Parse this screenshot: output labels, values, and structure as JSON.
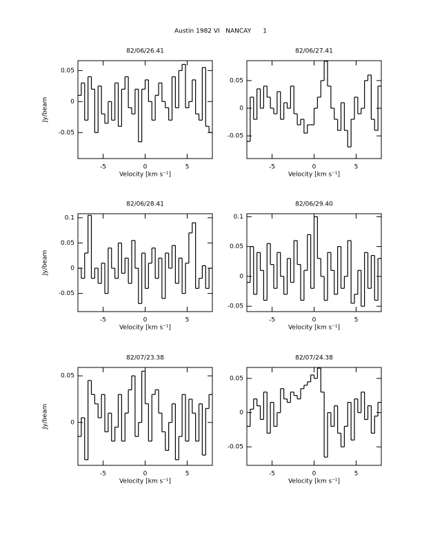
{
  "title": "Austin 1982 VI   NANCAY      1",
  "chart_data": [
    {
      "type": "step",
      "title": "82/06/26.41",
      "xlabel": "Velocity [km s⁻¹]",
      "ylabel": "Jy/beam",
      "x": [
        -7.8,
        -7.4,
        -7.0,
        -6.6,
        -6.2,
        -5.8,
        -5.4,
        -5.0,
        -4.6,
        -4.2,
        -3.8,
        -3.4,
        -3.0,
        -2.6,
        -2.2,
        -1.8,
        -1.4,
        -1.0,
        -0.6,
        -0.2,
        0.2,
        0.6,
        1.0,
        1.4,
        1.8,
        2.2,
        2.6,
        3.0,
        3.4,
        3.8,
        4.2,
        4.6,
        5.0,
        5.4,
        5.8,
        6.2,
        6.6,
        7.0,
        7.4,
        7.8
      ],
      "values": [
        0.01,
        0.03,
        -0.03,
        0.04,
        0.02,
        -0.05,
        0.025,
        -0.02,
        -0.035,
        0.0,
        -0.03,
        0.03,
        -0.04,
        0.02,
        0.04,
        -0.01,
        -0.02,
        0.02,
        -0.065,
        0.02,
        0.035,
        0.0,
        -0.03,
        0.01,
        0.03,
        0.0,
        -0.01,
        -0.03,
        0.04,
        -0.01,
        0.05,
        0.06,
        -0.01,
        0.0,
        0.035,
        -0.02,
        -0.03,
        0.055,
        -0.04,
        -0.05
      ],
      "color": "#000000",
      "xlim": [
        -8,
        8
      ],
      "ylim": [
        -0.092,
        0.066
      ],
      "xticks": [
        -5,
        0,
        5
      ],
      "yticks": [
        -0.05,
        0,
        0.05
      ]
    },
    {
      "type": "step",
      "title": "82/06/27.41",
      "xlabel": "Velocity [km s⁻¹]",
      "x": [
        -7.8,
        -7.4,
        -7.0,
        -6.6,
        -6.2,
        -5.8,
        -5.4,
        -5.0,
        -4.6,
        -4.2,
        -3.8,
        -3.4,
        -3.0,
        -2.6,
        -2.2,
        -1.8,
        -1.4,
        -1.0,
        -0.6,
        -0.2,
        0.2,
        0.6,
        1.0,
        1.4,
        1.8,
        2.2,
        2.6,
        3.0,
        3.4,
        3.8,
        4.2,
        4.6,
        5.0,
        5.4,
        5.8,
        6.2,
        6.6,
        7.0,
        7.4,
        7.8
      ],
      "values": [
        -0.06,
        0.02,
        -0.02,
        0.035,
        0.0,
        0.04,
        0.02,
        0.0,
        -0.01,
        0.03,
        -0.02,
        0.01,
        0.0,
        0.04,
        -0.01,
        -0.03,
        -0.02,
        -0.045,
        -0.03,
        -0.03,
        0.0,
        0.02,
        0.05,
        0.085,
        0.04,
        0.0,
        -0.02,
        -0.04,
        0.01,
        -0.04,
        -0.07,
        -0.02,
        0.02,
        -0.01,
        0.0,
        0.05,
        0.06,
        -0.02,
        -0.04,
        0.04
      ],
      "color": "#000000",
      "xlim": [
        -8,
        8
      ],
      "ylim": [
        -0.091,
        0.086
      ],
      "xticks": [
        -5,
        0,
        5
      ],
      "yticks": [
        -0.05,
        0,
        0.05
      ]
    },
    {
      "type": "step",
      "title": "82/06/28.41",
      "xlabel": "Velocity [km s⁻¹]",
      "ylabel": "Jy/beam",
      "x": [
        -7.8,
        -7.4,
        -7.0,
        -6.6,
        -6.2,
        -5.8,
        -5.4,
        -5.0,
        -4.6,
        -4.2,
        -3.8,
        -3.4,
        -3.0,
        -2.6,
        -2.2,
        -1.8,
        -1.4,
        -1.0,
        -0.6,
        -0.2,
        0.2,
        0.6,
        1.0,
        1.4,
        1.8,
        2.2,
        2.6,
        3.0,
        3.4,
        3.8,
        4.2,
        4.6,
        5.0,
        5.4,
        5.8,
        6.2,
        6.6,
        7.0,
        7.4,
        7.8
      ],
      "values": [
        0.0,
        -0.02,
        0.03,
        0.105,
        -0.02,
        0.0,
        -0.03,
        0.01,
        -0.05,
        0.04,
        0.0,
        -0.02,
        0.05,
        -0.01,
        0.02,
        -0.03,
        0.055,
        0.0,
        -0.07,
        0.03,
        -0.04,
        0.01,
        0.04,
        -0.02,
        0.02,
        -0.06,
        0.03,
        0.0,
        0.045,
        -0.03,
        0.02,
        -0.05,
        0.01,
        0.07,
        0.09,
        -0.04,
        -0.02,
        0.005,
        -0.04,
        0.0
      ],
      "color": "#000000",
      "xlim": [
        -8,
        8
      ],
      "ylim": [
        -0.086,
        0.108
      ],
      "xticks": [
        -5,
        0,
        5
      ],
      "yticks": [
        -0.05,
        0,
        0.05,
        0.1
      ]
    },
    {
      "type": "step",
      "title": "82/06/29.40",
      "xlabel": "Velocity [km s⁻¹]",
      "x": [
        -7.8,
        -7.4,
        -7.0,
        -6.6,
        -6.2,
        -5.8,
        -5.4,
        -5.0,
        -4.6,
        -4.2,
        -3.8,
        -3.4,
        -3.0,
        -2.6,
        -2.2,
        -1.8,
        -1.4,
        -1.0,
        -0.6,
        -0.2,
        0.2,
        0.6,
        1.0,
        1.4,
        1.8,
        2.2,
        2.6,
        3.0,
        3.4,
        3.8,
        4.2,
        4.6,
        5.0,
        5.4,
        5.8,
        6.2,
        6.6,
        7.0,
        7.4,
        7.8
      ],
      "values": [
        -0.01,
        0.05,
        -0.03,
        0.04,
        0.01,
        -0.04,
        0.055,
        0.02,
        -0.02,
        0.04,
        0.0,
        -0.03,
        0.03,
        -0.01,
        0.06,
        0.02,
        -0.04,
        0.01,
        0.07,
        -0.02,
        0.1,
        0.03,
        0.0,
        -0.04,
        0.04,
        0.01,
        -0.03,
        0.05,
        -0.02,
        0.0,
        0.06,
        -0.045,
        -0.03,
        0.01,
        -0.05,
        0.04,
        -0.02,
        0.035,
        -0.04,
        0.03
      ],
      "color": "#000000",
      "xlim": [
        -8,
        8
      ],
      "ylim": [
        -0.059,
        0.105
      ],
      "xticks": [
        -5,
        0,
        5
      ],
      "yticks": [
        -0.05,
        0,
        0.05,
        0.1
      ]
    },
    {
      "type": "step",
      "title": "82/07/23.38",
      "xlabel": "Velocity [km s⁻¹]",
      "ylabel": "Jy/beam",
      "x": [
        -7.8,
        -7.4,
        -7.0,
        -6.6,
        -6.2,
        -5.8,
        -5.4,
        -5.0,
        -4.6,
        -4.2,
        -3.8,
        -3.4,
        -3.0,
        -2.6,
        -2.2,
        -1.8,
        -1.4,
        -1.0,
        -0.6,
        -0.2,
        0.2,
        0.6,
        1.0,
        1.4,
        1.8,
        2.2,
        2.6,
        3.0,
        3.4,
        3.8,
        4.2,
        4.6,
        5.0,
        5.4,
        5.8,
        6.2,
        6.6,
        7.0,
        7.4,
        7.8
      ],
      "values": [
        -0.015,
        0.005,
        -0.04,
        0.045,
        0.03,
        0.02,
        0.005,
        0.03,
        -0.01,
        0.01,
        -0.02,
        -0.005,
        0.03,
        -0.02,
        0.01,
        0.035,
        0.05,
        -0.015,
        0.0,
        0.055,
        0.02,
        -0.02,
        0.03,
        0.035,
        0.01,
        -0.01,
        -0.03,
        0.0,
        0.02,
        -0.04,
        -0.015,
        0.03,
        -0.02,
        0.025,
        0.01,
        -0.02,
        0.02,
        -0.035,
        0.015,
        0.03
      ],
      "color": "#000000",
      "xlim": [
        -8,
        8
      ],
      "ylim": [
        -0.046,
        0.059
      ],
      "xticks": [
        -5,
        0,
        5
      ],
      "yticks": [
        0,
        0.05
      ]
    },
    {
      "type": "step",
      "title": "82/07/24.38",
      "xlabel": "Velocity [km s⁻¹]",
      "x": [
        -7.8,
        -7.4,
        -7.0,
        -6.6,
        -6.2,
        -5.8,
        -5.4,
        -5.0,
        -4.6,
        -4.2,
        -3.8,
        -3.4,
        -3.0,
        -2.6,
        -2.2,
        -1.8,
        -1.4,
        -1.0,
        -0.6,
        -0.2,
        0.2,
        0.6,
        1.0,
        1.4,
        1.8,
        2.2,
        2.6,
        3.0,
        3.4,
        3.8,
        4.2,
        4.6,
        5.0,
        5.4,
        5.8,
        6.2,
        6.6,
        7.0,
        7.4,
        7.8
      ],
      "values": [
        -0.02,
        0.005,
        0.02,
        0.01,
        -0.01,
        0.03,
        -0.03,
        0.015,
        -0.02,
        0.0,
        0.035,
        0.02,
        0.015,
        0.03,
        0.025,
        0.02,
        0.035,
        0.04,
        0.045,
        0.055,
        0.05,
        0.065,
        0.03,
        -0.065,
        0.0,
        -0.02,
        0.01,
        -0.03,
        -0.05,
        -0.02,
        0.015,
        -0.04,
        0.02,
        0.0,
        0.03,
        -0.01,
        0.01,
        -0.03,
        -0.005,
        0.015
      ],
      "color": "#000000",
      "xlim": [
        -8,
        8
      ],
      "ylim": [
        -0.077,
        0.066
      ],
      "xticks": [
        -5,
        0,
        5
      ],
      "yticks": [
        -0.05,
        0,
        0.05
      ]
    }
  ]
}
